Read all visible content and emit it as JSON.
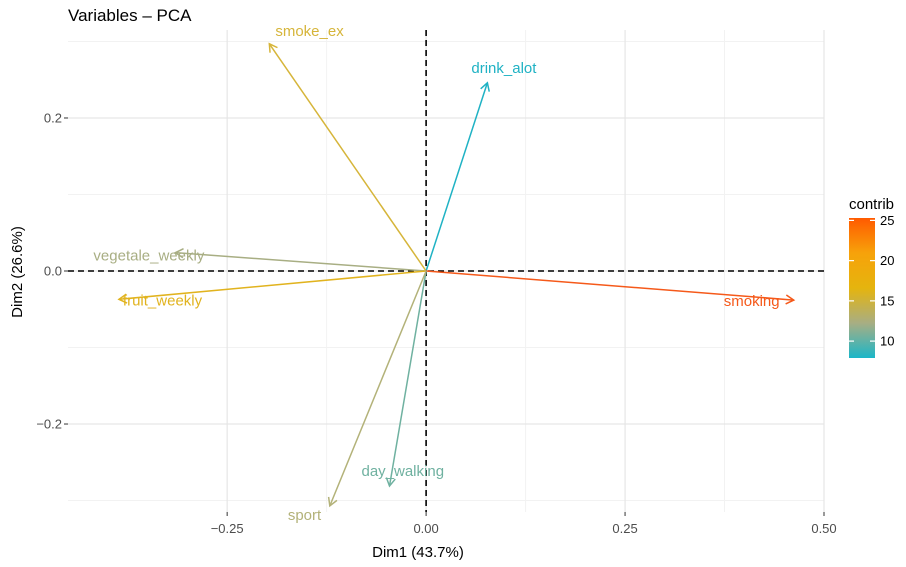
{
  "chart_data": {
    "type": "scatter",
    "subtype": "pca-variable-loadings",
    "title": "Variables – PCA",
    "xlabel": "Dim1 (43.7%)",
    "ylabel": "Dim2 (26.6%)",
    "xlim": [
      -0.45,
      0.5
    ],
    "ylim": [
      -0.315,
      0.315
    ],
    "x_ticks": [
      -0.25,
      0.0,
      0.25,
      0.5
    ],
    "x_tick_labels": [
      "−0.25",
      "0.00",
      "0.25",
      "0.50"
    ],
    "y_ticks": [
      -0.2,
      0.0,
      0.2
    ],
    "y_tick_labels": [
      "−0.2",
      "0.0",
      "0.2"
    ],
    "grid": true,
    "reference_lines": {
      "x": 0,
      "y": 0,
      "style": "dashed"
    },
    "variables": [
      {
        "label": "smoke_ex",
        "x": -0.197,
        "y": 0.297,
        "contrib": 17.3,
        "color": "#d6b53a"
      },
      {
        "label": "drink_alot",
        "x": 0.077,
        "y": 0.246,
        "contrib": 8.0,
        "color": "#1fb2c4"
      },
      {
        "label": "vegetale_weekly",
        "x": -0.315,
        "y": 0.024,
        "contrib": 12.4,
        "color": "#a8ae83"
      },
      {
        "label": "fruit_weekly",
        "x": -0.386,
        "y": -0.037,
        "contrib": 17.0,
        "color": "#e1b31e"
      },
      {
        "label": "smoking",
        "x": 0.462,
        "y": -0.038,
        "contrib": 25.2,
        "color": "#f5591a"
      },
      {
        "label": "day_walking",
        "x": -0.046,
        "y": -0.281,
        "contrib": 10.0,
        "color": "#6fb1a0"
      },
      {
        "label": "sport",
        "x": -0.121,
        "y": -0.307,
        "contrib": 12.8,
        "color": "#b3b279"
      }
    ],
    "legend": {
      "title": "contrib",
      "placement": "right",
      "range": [
        7.9,
        25.3
      ],
      "ticks": [
        10,
        15,
        20,
        25
      ],
      "tick_labels": [
        "10",
        "15",
        "20",
        "25"
      ],
      "colors": [
        "#1bb6c8",
        "#a8ae83",
        "#e5b40e",
        "#f7a20a",
        "#ff5a00"
      ]
    }
  }
}
